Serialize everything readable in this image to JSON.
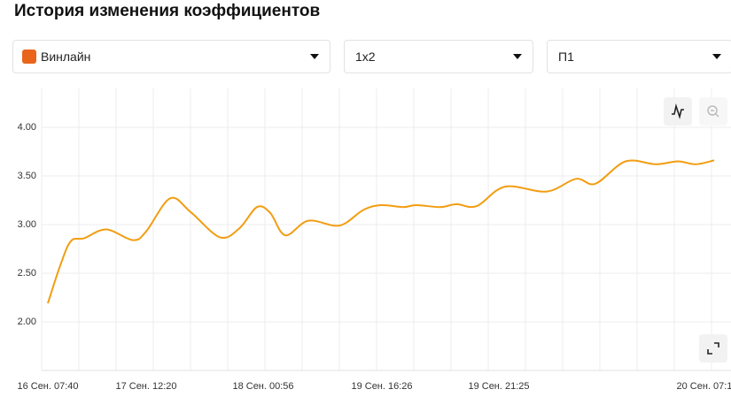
{
  "header": {
    "title": "История изменения коэффициентов"
  },
  "filters": [
    {
      "label": "Винлайн"
    },
    {
      "label": "1х2"
    },
    {
      "label": "П1"
    }
  ],
  "chart_data": {
    "type": "line",
    "x": [
      0,
      14,
      26,
      41,
      66,
      96,
      111,
      138,
      161,
      194,
      216,
      236,
      251,
      268,
      294,
      329,
      356,
      376,
      401,
      416,
      443,
      461,
      484,
      516,
      563,
      596,
      618,
      652,
      686,
      711,
      731,
      752
    ],
    "values": [
      2.19,
      2.58,
      2.83,
      2.86,
      2.95,
      2.84,
      2.93,
      3.27,
      3.13,
      2.87,
      2.96,
      3.18,
      3.12,
      2.89,
      3.04,
      2.99,
      3.15,
      3.2,
      3.18,
      3.2,
      3.18,
      3.21,
      3.19,
      3.39,
      3.34,
      3.47,
      3.42,
      3.65,
      3.62,
      3.65,
      3.62,
      3.66
    ],
    "color": "#f29d12",
    "xlim": [
      -7,
      771
    ],
    "ylim": [
      1.5,
      4.4
    ],
    "yticks": [
      {
        "value": 2,
        "label": "2.00"
      },
      {
        "value": 2.5,
        "label": "2.50"
      },
      {
        "value": 3,
        "label": "3.00"
      },
      {
        "value": 3.5,
        "label": "3.50"
      },
      {
        "value": 4,
        "label": "4.00"
      }
    ],
    "xticks": [
      {
        "value": 0,
        "label": "16 Сен. 07:40"
      },
      {
        "value": 111,
        "label": "17 Сен. 12:20"
      },
      {
        "value": 243,
        "label": "18 Сен. 00:56"
      },
      {
        "value": 377,
        "label": "19 Сен. 16:26"
      },
      {
        "value": 509,
        "label": "19 Сен. 21:25"
      },
      {
        "value": 741,
        "label": "20 Сен. 07:1"
      }
    ],
    "grid": true
  }
}
